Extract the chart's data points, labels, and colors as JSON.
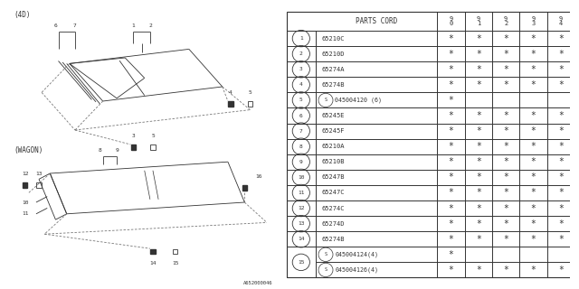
{
  "bg_color": "#ffffff",
  "lc": "#333333",
  "dlc": "#777777",
  "diagram_label_4d": "(4D)",
  "diagram_label_wagon": "(WAGON)",
  "watermark": "A652000046",
  "table": {
    "header_col": "PARTS CORD",
    "year_cols": [
      "9\n0",
      "9\n1",
      "9\n2",
      "9\n3",
      "9\n4"
    ],
    "rows": [
      {
        "num": "1",
        "part": "65210C",
        "stars": [
          1,
          1,
          1,
          1,
          1
        ]
      },
      {
        "num": "2",
        "part": "65210D",
        "stars": [
          1,
          1,
          1,
          1,
          1
        ]
      },
      {
        "num": "3",
        "part": "65274A",
        "stars": [
          1,
          1,
          1,
          1,
          1
        ]
      },
      {
        "num": "4",
        "part": "65274B",
        "stars": [
          1,
          1,
          1,
          1,
          1
        ]
      },
      {
        "num": "5",
        "part": "045004120 (6)",
        "stars": [
          1,
          0,
          0,
          0,
          0
        ],
        "special": true
      },
      {
        "num": "6",
        "part": "65245E",
        "stars": [
          1,
          1,
          1,
          1,
          1
        ]
      },
      {
        "num": "7",
        "part": "65245F",
        "stars": [
          1,
          1,
          1,
          1,
          1
        ]
      },
      {
        "num": "8",
        "part": "65210A",
        "stars": [
          1,
          1,
          1,
          1,
          1
        ]
      },
      {
        "num": "9",
        "part": "65210B",
        "stars": [
          1,
          1,
          1,
          1,
          1
        ]
      },
      {
        "num": "10",
        "part": "65247B",
        "stars": [
          1,
          1,
          1,
          1,
          1
        ]
      },
      {
        "num": "11",
        "part": "65247C",
        "stars": [
          1,
          1,
          1,
          1,
          1
        ]
      },
      {
        "num": "12",
        "part": "65274C",
        "stars": [
          1,
          1,
          1,
          1,
          1
        ]
      },
      {
        "num": "13",
        "part": "65274D",
        "stars": [
          1,
          1,
          1,
          1,
          1
        ]
      },
      {
        "num": "14",
        "part": "65274B",
        "stars": [
          1,
          1,
          1,
          1,
          1
        ]
      },
      {
        "num": "15",
        "part1": "045004124(4)",
        "stars1": [
          1,
          0,
          0,
          0,
          0
        ],
        "part2": "045004126(4)",
        "stars2": [
          1,
          1,
          1,
          1,
          1
        ],
        "double": true
      }
    ]
  }
}
